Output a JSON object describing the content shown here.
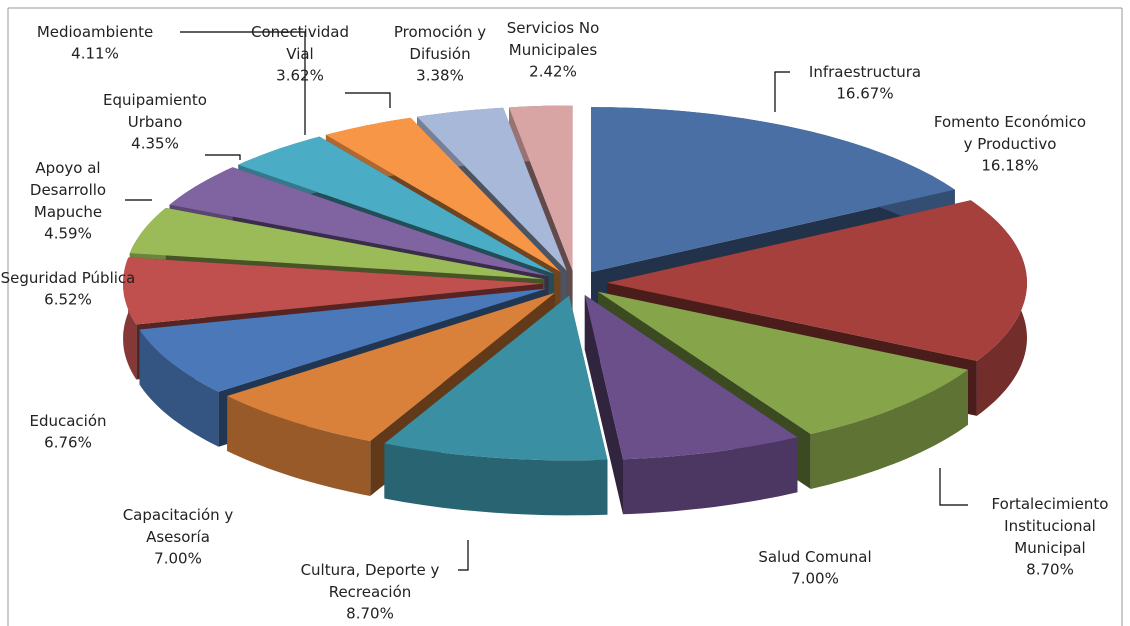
{
  "chart_data": {
    "type": "pie3d",
    "categories": [
      "Infraestructura",
      "Fomento Económico\ny Productivo",
      "Fortalecimiento\nInstitucional\nMunicipal",
      "Salud Comunal",
      "Cultura, Deporte y\nRecreación",
      "Capacitación y\nAsesoría",
      "Educación",
      "Seguridad Pública",
      "Apoyo al\nDesarrollo\nMapuche",
      "Equipamiento\nUrbano",
      "Medioambiente",
      "Conectividad\nVial",
      "Promoción y\nDifusión",
      "Servicios No\nMunicipales"
    ],
    "values": [
      16.67,
      16.18,
      8.7,
      7.0,
      8.7,
      7.0,
      6.76,
      6.52,
      4.59,
      4.35,
      4.11,
      3.62,
      3.38,
      2.42
    ],
    "value_labels": [
      "16.67%",
      "16.18%",
      "8.70%",
      "7.00%",
      "8.70%",
      "7.00%",
      "6.76%",
      "6.52%",
      "4.59%",
      "4.35%",
      "4.11%",
      "3.62%",
      "3.38%",
      "2.42%"
    ],
    "colors": [
      "#4a6fa5",
      "#a5403d",
      "#86a44a",
      "#6b4f8a",
      "#3a8fa3",
      "#d9803a",
      "#4a78b8",
      "#c0504d",
      "#9bbb59",
      "#8064a2",
      "#4bacc6",
      "#f79646",
      "#a8b8d8",
      "#d9a4a4"
    ]
  }
}
